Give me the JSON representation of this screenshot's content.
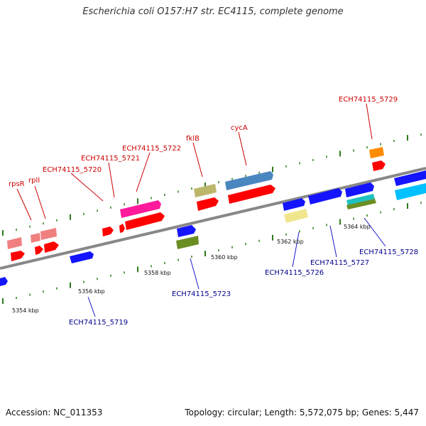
{
  "title": "Escherichia coli O157:H7 str. EC4115, complete genome",
  "footer": {
    "accession": "Accession: NC_011353",
    "summary": "Topology: circular; Length: 5,572,075 bp; Genes: 5,447"
  },
  "colors": {
    "backbone": "#888888",
    "tick": "#2f7a1e",
    "label_top": "#cc0000",
    "label_bottom": "#00008b",
    "leader_top": "#cc0000",
    "leader_bottom": "#1a1acc"
  },
  "scale_labels": [
    "5354 kbp",
    "5356 kbp",
    "5358 kbp",
    "5360 kbp",
    "5362 kbp",
    "5364 kbp"
  ],
  "genes_top": [
    {
      "name": "rpsR",
      "color": "#ff0000"
    },
    {
      "name": "rplI",
      "color": "#ff0000"
    },
    {
      "name": "ECH74115_5720",
      "color": "#ff0000"
    },
    {
      "name": "ECH74115_5721",
      "color": "#ff0000"
    },
    {
      "name": "ECH74115_5722",
      "color": "#ff1a9c"
    },
    {
      "name": "fklB",
      "color": "#ff0000"
    },
    {
      "name": "cycA",
      "color": "#4a86c0"
    },
    {
      "name": "ECH74115_5729",
      "color": "#ff8c00"
    }
  ],
  "genes_bottom": [
    {
      "name": "ECH74115_5719",
      "color": "#1414ff"
    },
    {
      "name": "ECH74115_5723",
      "color": "#1414ff"
    },
    {
      "name": "ECH74115_5726",
      "color": "#f0e68c"
    },
    {
      "name": "ECH74115_5727",
      "color": "#1414ff"
    },
    {
      "name": "ECH74115_5728",
      "color": "#00c0ff"
    }
  ]
}
